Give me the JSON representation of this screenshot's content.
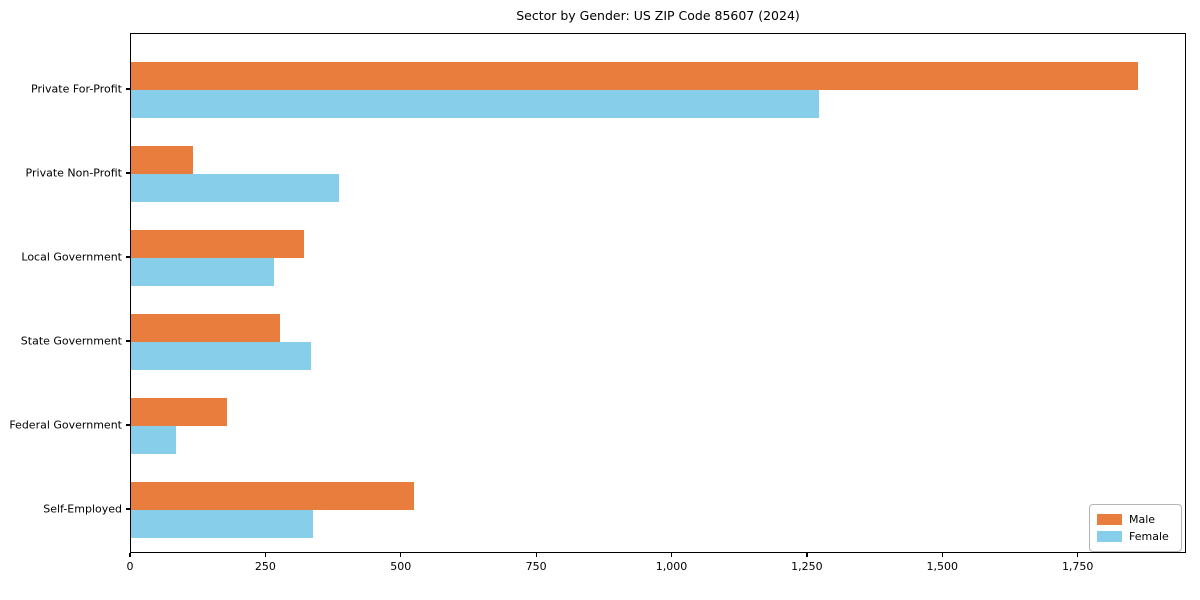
{
  "chart_data": {
    "type": "bar",
    "orientation": "horizontal",
    "title": "Sector by Gender: US ZIP Code 85607 (2024)",
    "categories": [
      "Private For-Profit",
      "Private Non-Profit",
      "Local Government",
      "State Government",
      "Federal Government",
      "Self-Employed"
    ],
    "series": [
      {
        "name": "Male",
        "color": "#E87D3E",
        "values": [
          1860,
          114,
          320,
          276,
          178,
          522
        ]
      },
      {
        "name": "Female",
        "color": "#87CEEB",
        "values": [
          1271,
          384,
          264,
          333,
          83,
          336
        ]
      }
    ],
    "xlabel": "",
    "ylabel": "",
    "xlim": [
      0,
      1950
    ],
    "xticks": [
      0,
      250,
      500,
      750,
      1000,
      1250,
      1500,
      1750
    ],
    "xtick_labels": [
      "0",
      "250",
      "500",
      "750",
      "1,000",
      "1,250",
      "1,500",
      "1,750"
    ],
    "grid": false,
    "legend_position": "lower right",
    "legend_entries": [
      "Male",
      "Female"
    ]
  }
}
